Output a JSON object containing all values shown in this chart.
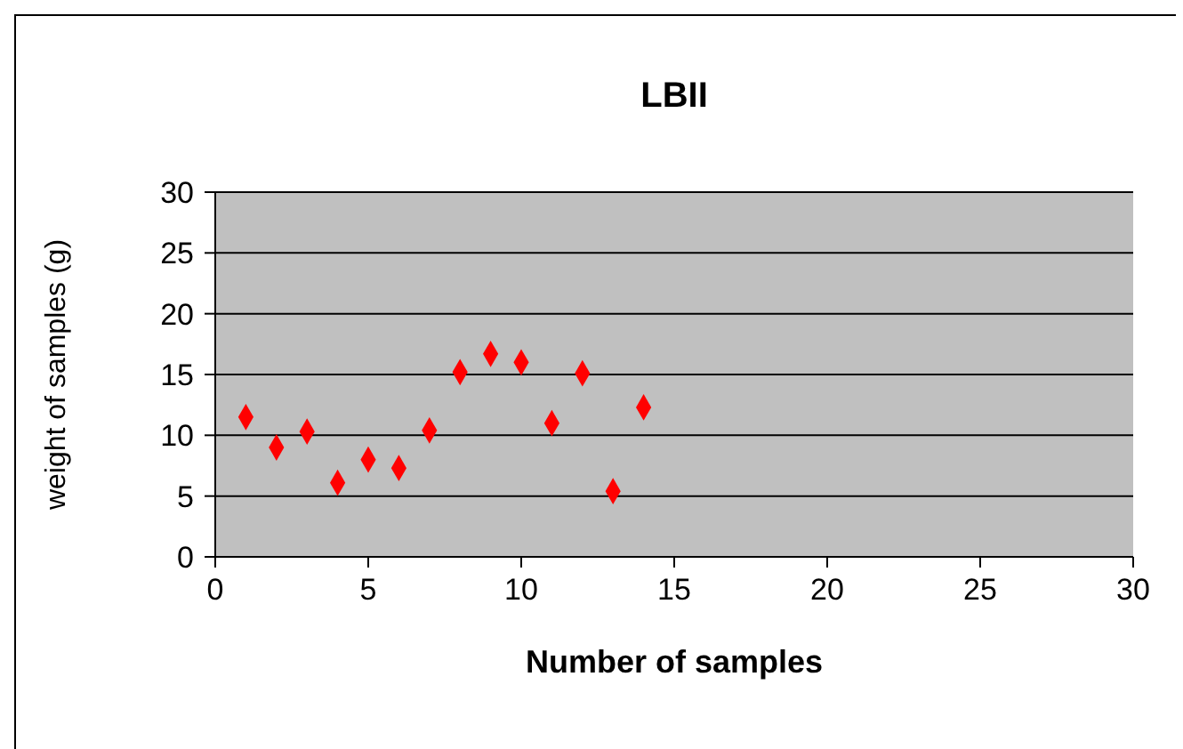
{
  "chart_data": {
    "type": "scatter",
    "title": "LBII",
    "xlabel": "Number of samples",
    "ylabel": "weight of samples (g)",
    "x": [
      1,
      2,
      3,
      4,
      5,
      6,
      7,
      8,
      9,
      10,
      11,
      12,
      13,
      14
    ],
    "series": [
      {
        "color": "#ff0000",
        "values": [
          11.5,
          9,
          10.3,
          6.1,
          8,
          7.3,
          10.4,
          15.2,
          16.7,
          16,
          11,
          15.1,
          5.4,
          12.3
        ]
      }
    ],
    "xlim": [
      0,
      30
    ],
    "xticks": [
      0,
      5,
      10,
      15,
      20,
      25,
      30
    ],
    "ylim": [
      0,
      30
    ],
    "yticks": [
      0,
      5,
      10,
      15,
      20,
      25,
      30
    ],
    "grid": "y",
    "marker": "diamond",
    "legend": false
  }
}
